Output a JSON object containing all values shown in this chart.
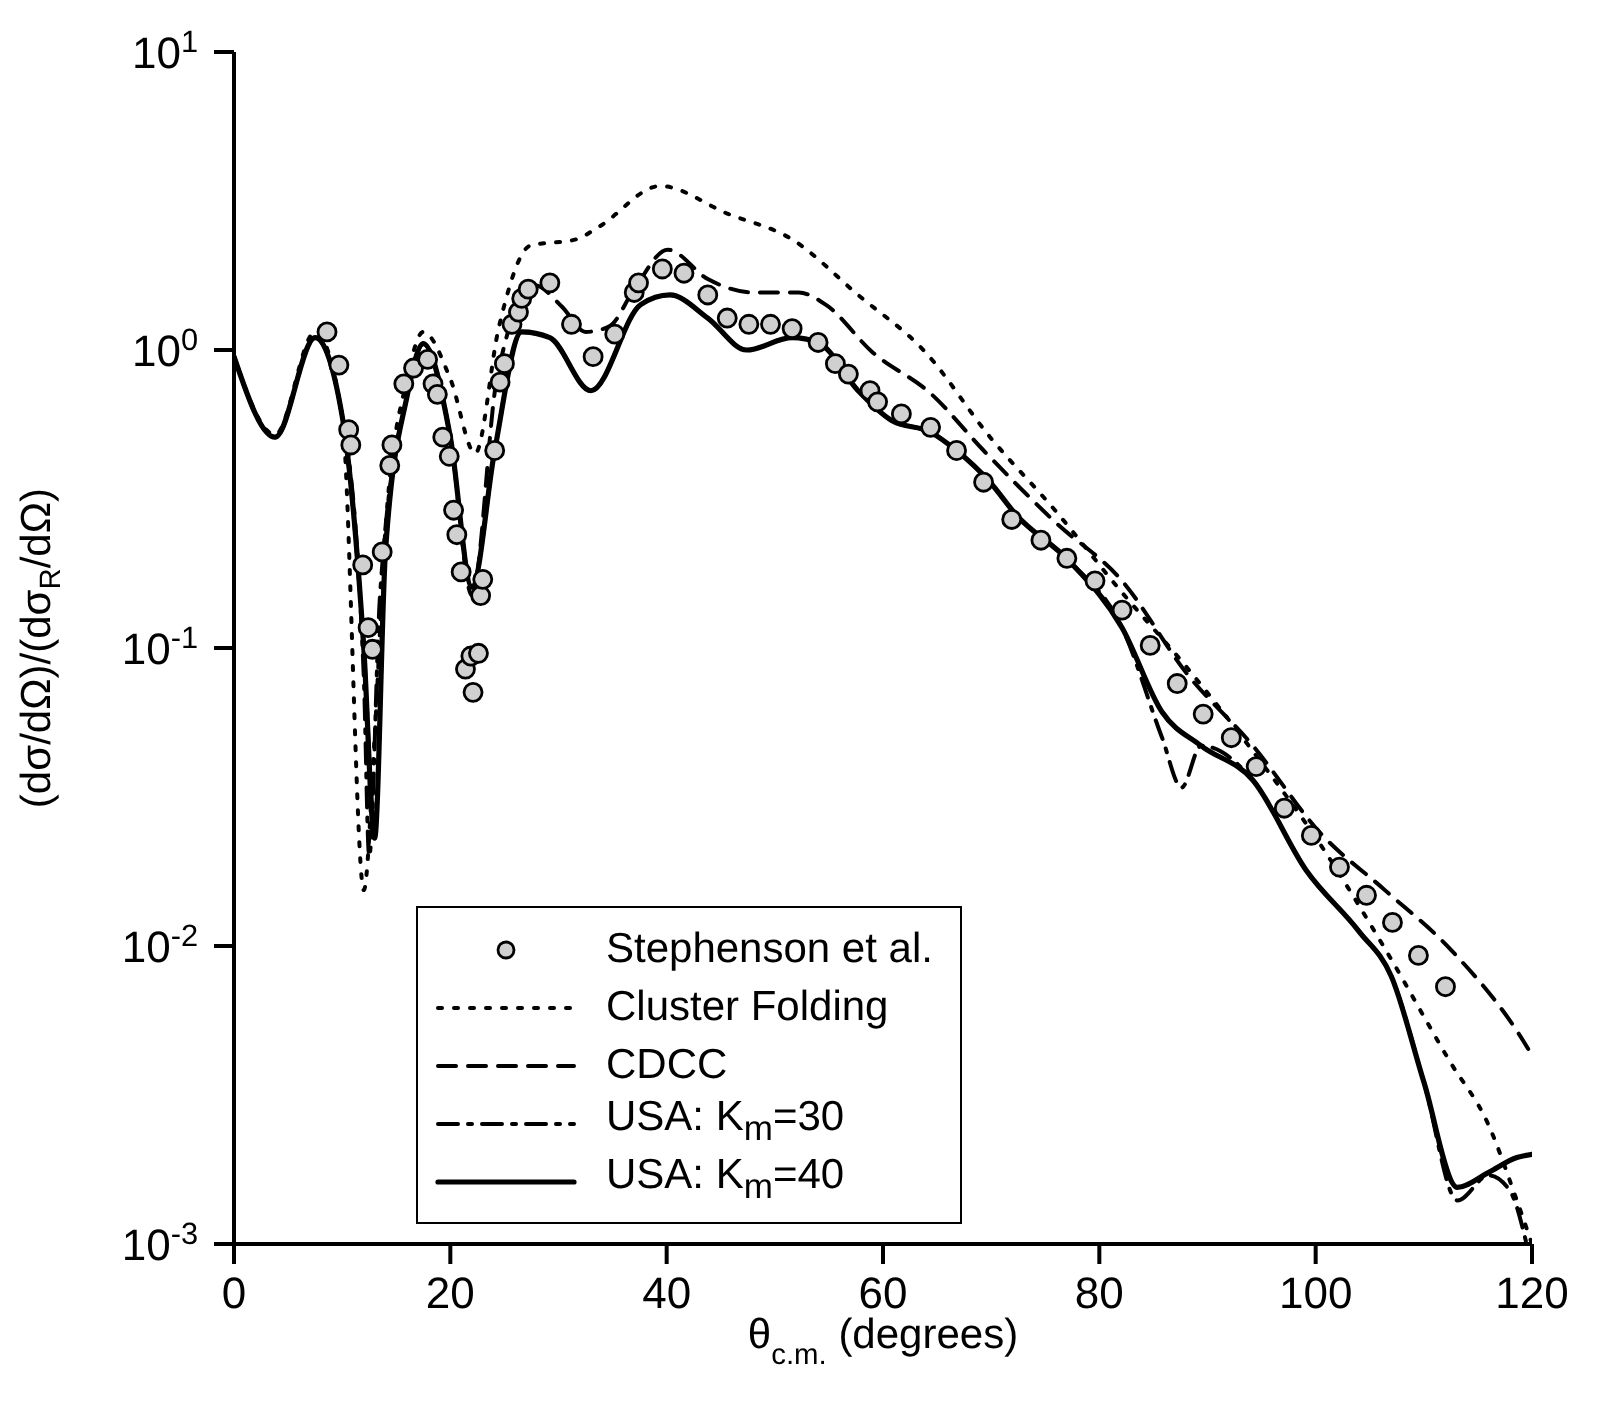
{
  "chart_data": {
    "type": "line",
    "xlabel": "θ$_{c.m.}$ (degrees)",
    "ylabel": "(dσ/dΩ)/(dσ$_{R}$/dΩ)",
    "log": "y",
    "xlim": [
      0,
      120
    ],
    "xticks": [
      0,
      20,
      40,
      60,
      80,
      100,
      120
    ],
    "ylim": [
      0.001,
      10
    ],
    "yticks": [
      {
        "value": 0.001,
        "label": "10$^{-3}$"
      },
      {
        "value": 0.01,
        "label": "10$^{-2}$"
      },
      {
        "value": 0.1,
        "label": "10$^{-1}$"
      },
      {
        "value": 1,
        "label": "10$^{0}$"
      },
      {
        "value": 10,
        "label": "10$^{1}$"
      }
    ],
    "grid": false,
    "legend": "bottom left",
    "series": [
      {
        "name": "Stephenson et al.",
        "type": "scatter",
        "marker": "circle",
        "color": "#000000",
        "x": [
          8.6,
          9.7,
          10.6,
          10.8,
          11.9,
          12.4,
          12.8,
          13.7,
          14.4,
          14.6,
          15.7,
          16.6,
          17.9,
          18.4,
          18.8,
          19.3,
          19.9,
          20.3,
          20.6,
          21,
          21.4,
          21.9,
          22.6,
          22.1,
          22.8,
          23,
          24.1,
          24.6,
          25,
          25.7,
          26.3,
          26.6,
          27.2,
          29.2,
          31.2,
          33.2,
          35.2,
          37,
          37.4,
          39.6,
          41.6,
          43.8,
          45.6,
          47.6,
          49.6,
          51.6,
          54,
          55.6,
          56.8,
          58.8,
          59.5,
          61.7,
          64.4,
          66.8,
          69.3,
          71.9,
          74.6,
          77,
          79.6,
          82.1,
          84.7,
          87.2,
          89.6,
          92.2,
          94.5,
          97.1,
          99.6,
          102.2,
          104.7,
          107.1,
          109.5,
          112
        ],
        "values": [
          1.15,
          0.89,
          0.54,
          0.48,
          0.19,
          0.117,
          0.099,
          0.21,
          0.41,
          0.48,
          0.77,
          0.87,
          0.93,
          0.77,
          0.71,
          0.51,
          0.44,
          0.29,
          0.24,
          0.18,
          0.085,
          0.094,
          0.096,
          0.071,
          0.15,
          0.17,
          0.46,
          0.78,
          0.9,
          1.22,
          1.34,
          1.49,
          1.6,
          1.68,
          1.22,
          0.95,
          1.13,
          1.56,
          1.68,
          1.87,
          1.81,
          1.53,
          1.28,
          1.22,
          1.22,
          1.18,
          1.06,
          0.9,
          0.83,
          0.73,
          0.67,
          0.61,
          0.55,
          0.46,
          0.36,
          0.27,
          0.23,
          0.2,
          0.168,
          0.134,
          0.102,
          0.076,
          0.06,
          0.05,
          0.04,
          0.029,
          0.0235,
          0.0184,
          0.0148,
          0.012,
          0.0093,
          0.0073
        ]
      },
      {
        "name": "Cluster Folding",
        "line_style": "dotted",
        "color": "#000000",
        "x": [
          0,
          3.8,
          7.5,
          10,
          12,
          13,
          14,
          16,
          17.5,
          20,
          22.3,
          24.5,
          27.4,
          31.6,
          33.8,
          39.4,
          45.6,
          51.6,
          57.7,
          63.9,
          69.9,
          75.9,
          82,
          88.1,
          94.2,
          100.4,
          106.4,
          112.4,
          116,
          118.6,
          120
        ],
        "values": [
          0.95,
          0.52,
          1.15,
          0.6,
          0.0154,
          0.05,
          0.25,
          0.8,
          1.15,
          0.8,
          0.45,
          1.2,
          2.24,
          2.35,
          2.6,
          3.55,
          2.87,
          2.35,
          1.53,
          0.985,
          0.51,
          0.29,
          0.155,
          0.086,
          0.045,
          0.022,
          0.0098,
          0.0041,
          0.0025,
          0.0014,
          0.001
        ]
      },
      {
        "name": "CDCC",
        "line_style": "dashed",
        "color": "#000000",
        "x": [
          0,
          3.8,
          7.5,
          10,
          12,
          13,
          14,
          16,
          17.5,
          20,
          22,
          24.3,
          27.8,
          30.3,
          32.5,
          34.7,
          37,
          40.1,
          43.8,
          48,
          52.2,
          54.7,
          59,
          64.4,
          69.3,
          75.9,
          82.1,
          88.1,
          94.2,
          100.4,
          106.4,
          112.4,
          119.2,
          120
        ],
        "values": [
          0.95,
          0.51,
          1.1,
          0.6,
          0.1,
          0.025,
          0.21,
          0.7,
          1.05,
          0.51,
          0.15,
          0.8,
          1.65,
          1.4,
          1.15,
          1.2,
          1.6,
          2.17,
          1.73,
          1.56,
          1.56,
          1.42,
          0.985,
          0.715,
          0.46,
          0.265,
          0.168,
          0.082,
          0.047,
          0.024,
          0.0154,
          0.0098,
          0.0048,
          0.0043
        ]
      },
      {
        "name": "USA: K$_{m}$=30",
        "line_style": "dashdot",
        "color": "#000000",
        "x": [
          0,
          3.8,
          7.5,
          10,
          12,
          12.5,
          13.5,
          16,
          17.5,
          20,
          22,
          24.1,
          26.6,
          29.2,
          33,
          37.6,
          40.3,
          43.8,
          47.4,
          51.6,
          54,
          57.7,
          60.8,
          64.4,
          66.8,
          69.9,
          72.3,
          77.2,
          82.1,
          85.8,
          87.6,
          89.4,
          94.2,
          99.1,
          104,
          107,
          110,
          113.1,
          116,
          118,
          119.5
        ],
        "values": [
          0.95,
          0.51,
          1.1,
          0.6,
          0.08,
          0.02,
          0.15,
          0.7,
          1.05,
          0.51,
          0.16,
          0.46,
          1.15,
          1.1,
          0.73,
          1.42,
          1.53,
          1.28,
          1.0,
          1.1,
          1.06,
          0.73,
          0.58,
          0.53,
          0.46,
          0.36,
          0.28,
          0.196,
          0.117,
          0.05,
          0.034,
          0.047,
          0.036,
          0.018,
          0.0112,
          0.0079,
          0.0035,
          0.0014,
          0.0017,
          0.0015,
          0.001
        ]
      },
      {
        "name": "USA: K$_{m}$=40",
        "line_style": "solid",
        "color": "#000000",
        "x": [
          0,
          3.8,
          7.5,
          10,
          12,
          13,
          14,
          16,
          17.5,
          20,
          22,
          24.1,
          26.6,
          29.2,
          33,
          37.6,
          40.3,
          43.8,
          47.4,
          51.6,
          54,
          57.7,
          60.8,
          64.4,
          66.8,
          69.9,
          72.3,
          77.2,
          82.1,
          85.8,
          89.4,
          94.2,
          99.1,
          104,
          107,
          110,
          113.1,
          116,
          118.6,
          120
        ],
        "values": [
          0.95,
          0.51,
          1.1,
          0.6,
          0.1,
          0.023,
          0.21,
          0.7,
          1.05,
          0.51,
          0.16,
          0.46,
          1.15,
          1.1,
          0.73,
          1.42,
          1.53,
          1.28,
          1.0,
          1.1,
          1.06,
          0.73,
          0.58,
          0.53,
          0.46,
          0.36,
          0.28,
          0.196,
          0.117,
          0.061,
          0.047,
          0.036,
          0.018,
          0.0112,
          0.0079,
          0.0035,
          0.00155,
          0.00174,
          0.00195,
          0.002
        ]
      }
    ]
  }
}
